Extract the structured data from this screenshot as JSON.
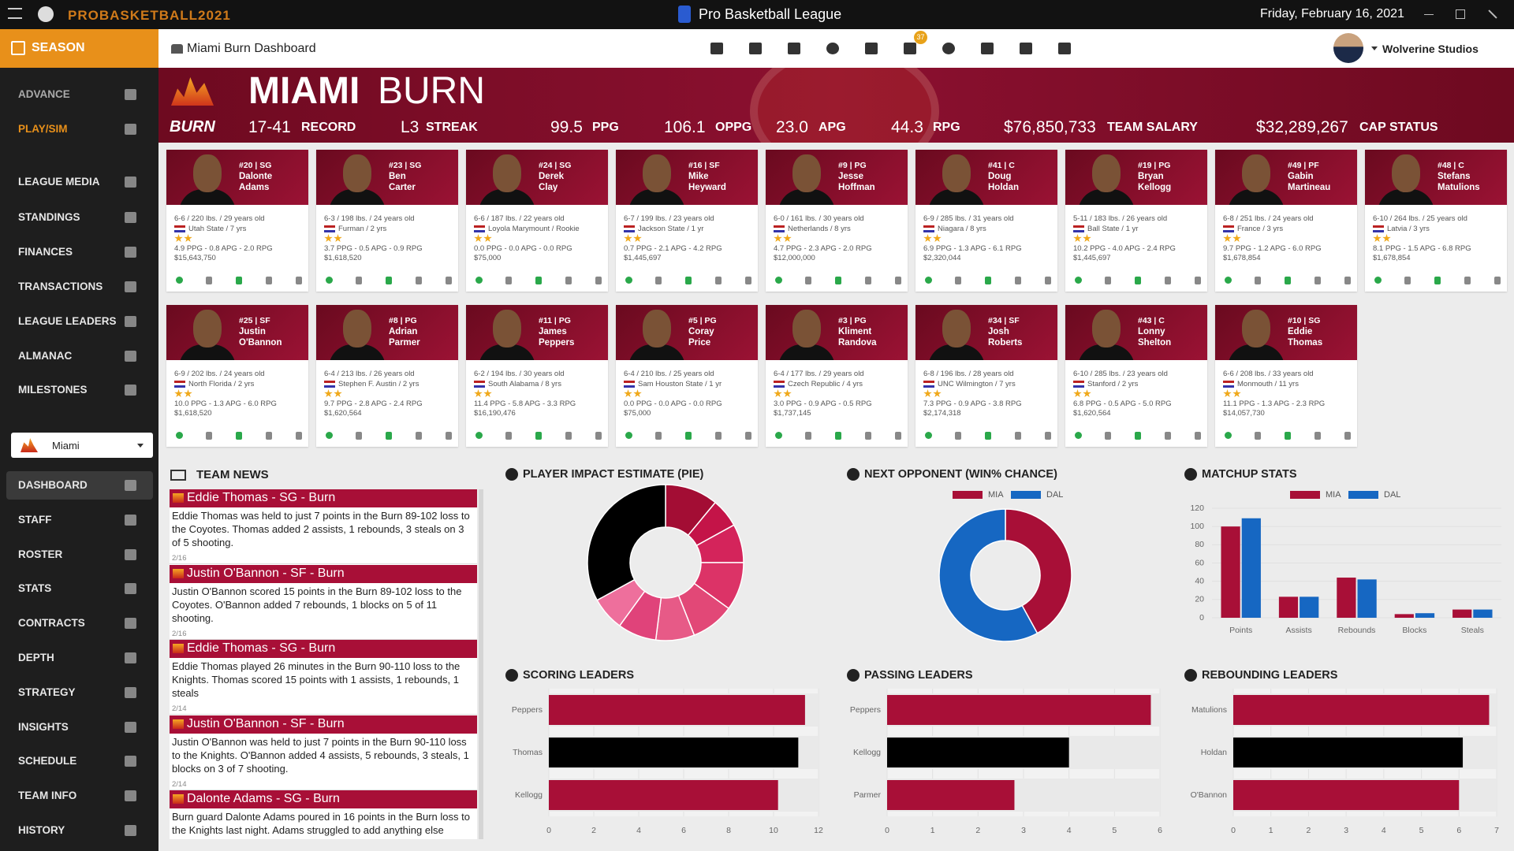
{
  "titlebar": {
    "logo": "PROBASKETBALL2021",
    "title": "Pro Basketball League",
    "date": "Friday, February 16, 2021"
  },
  "sidebar": {
    "season": "SEASON",
    "primary": [
      "ADVANCE",
      "PLAY/SIM",
      "LEAGUE MEDIA",
      "STANDINGS",
      "FINANCES",
      "TRANSACTIONS",
      "LEAGUE LEADERS",
      "ALMANAC",
      "MILESTONES"
    ],
    "team_select": "Miami",
    "secondary": [
      "DASHBOARD",
      "STAFF",
      "ROSTER",
      "STATS",
      "CONTRACTS",
      "DEPTH",
      "STRATEGY",
      "INSIGHTS",
      "SCHEDULE",
      "TEAM INFO",
      "HISTORY"
    ],
    "active_index": 0
  },
  "toolbar": {
    "breadcrumb": "Miami Burn Dashboard",
    "mail_badge": "37",
    "user": "Wolverine Studios"
  },
  "team": {
    "logo_text": "BURN",
    "city": "MIAMI",
    "name": "BURN",
    "stats": [
      {
        "value": "17-41",
        "label": "RECORD"
      },
      {
        "value": "L3",
        "label": "STREAK"
      },
      {
        "value": "99.5",
        "label": "PPG"
      },
      {
        "value": "106.1",
        "label": "OPPG"
      },
      {
        "value": "23.0",
        "label": "APG"
      },
      {
        "value": "44.3",
        "label": "RPG"
      },
      {
        "value": "$76,850,733",
        "label": "TEAM SALARY"
      },
      {
        "value": "$32,289,267",
        "label": "CAP STATUS"
      }
    ]
  },
  "players": [
    {
      "number_pos": "#20 | SG",
      "first": "Dalonte",
      "last": "Adams",
      "bio": "6-6 / 220 lbs. / 29 years old",
      "origin": "Utah State / 7 yrs",
      "stats": "4.9 PPG - 0.8 APG - 2.0 RPG",
      "salary": "$15,643,750"
    },
    {
      "number_pos": "#23 | SG",
      "first": "Ben",
      "last": "Carter",
      "bio": "6-3 / 198 lbs. / 24 years old",
      "origin": "Furman / 2 yrs",
      "stats": "3.7 PPG - 0.5 APG - 0.9 RPG",
      "salary": "$1,618,520"
    },
    {
      "number_pos": "#24 | SG",
      "first": "Derek",
      "last": "Clay",
      "bio": "6-6 / 187 lbs. / 22 years old",
      "origin": "Loyola Marymount / Rookie",
      "stats": "0.0 PPG - 0.0 APG - 0.0 RPG",
      "salary": "$75,000"
    },
    {
      "number_pos": "#16 | SF",
      "first": "Mike",
      "last": "Heyward",
      "bio": "6-7 / 199 lbs. / 23 years old",
      "origin": "Jackson State / 1 yr",
      "stats": "0.7 PPG - 2.1 APG - 4.2 RPG",
      "salary": "$1,445,697"
    },
    {
      "number_pos": "#9 | PG",
      "first": "Jesse",
      "last": "Hoffman",
      "bio": "6-0 / 161 lbs. / 30 years old",
      "origin": "Netherlands / 8 yrs",
      "stats": "4.7 PPG - 2.3 APG - 2.0 RPG",
      "salary": "$12,000,000"
    },
    {
      "number_pos": "#41 | C",
      "first": "Doug",
      "last": "Holdan",
      "bio": "6-9 / 285 lbs. / 31 years old",
      "origin": "Niagara / 8 yrs",
      "stats": "6.9 PPG - 1.3 APG - 6.1 RPG",
      "salary": "$2,320,044"
    },
    {
      "number_pos": "#19 | PG",
      "first": "Bryan",
      "last": "Kellogg",
      "bio": "5-11 / 183 lbs. / 26 years old",
      "origin": "Ball State / 1 yr",
      "stats": "10.2 PPG - 4.0 APG - 2.4 RPG",
      "salary": "$1,445,697"
    },
    {
      "number_pos": "#49 | PF",
      "first": "Gabin",
      "last": "Martineau",
      "bio": "6-8 / 251 lbs. / 24 years old",
      "origin": "France / 3 yrs",
      "stats": "9.7 PPG - 1.2 APG - 6.0 RPG",
      "salary": "$1,678,854"
    },
    {
      "number_pos": "#48 | C",
      "first": "Stefans",
      "last": "Matulions",
      "bio": "6-10 / 264 lbs. / 25 years old",
      "origin": "Latvia / 3 yrs",
      "stats": "8.1 PPG - 1.5 APG - 6.8 RPG",
      "salary": "$1,678,854"
    },
    {
      "number_pos": "#25 | SF",
      "first": "Justin",
      "last": "O'Bannon",
      "bio": "6-9 / 202 lbs. / 24 years old",
      "origin": "North Florida / 2 yrs",
      "stats": "10.0 PPG - 1.3 APG - 6.0 RPG",
      "salary": "$1,618,520"
    },
    {
      "number_pos": "#8 | PG",
      "first": "Adrian",
      "last": "Parmer",
      "bio": "6-4 / 213 lbs. / 26 years old",
      "origin": "Stephen F. Austin / 2 yrs",
      "stats": "9.7 PPG - 2.8 APG - 2.4 RPG",
      "salary": "$1,620,564"
    },
    {
      "number_pos": "#11 | PG",
      "first": "James",
      "last": "Peppers",
      "bio": "6-2 / 194 lbs. / 30 years old",
      "origin": "South Alabama / 8 yrs",
      "stats": "11.4 PPG - 5.8 APG - 3.3 RPG",
      "salary": "$16,190,476"
    },
    {
      "number_pos": "#5 | PG",
      "first": "Coray",
      "last": "Price",
      "bio": "6-4 / 210 lbs. / 25 years old",
      "origin": "Sam Houston State / 1 yr",
      "stats": "0.0 PPG - 0.0 APG - 0.0 RPG",
      "salary": "$75,000"
    },
    {
      "number_pos": "#3 | PG",
      "first": "Kliment",
      "last": "Randova",
      "bio": "6-4 / 177 lbs. / 29 years old",
      "origin": "Czech Republic / 4 yrs",
      "stats": "3.0 PPG - 0.9 APG - 0.5 RPG",
      "salary": "$1,737,145"
    },
    {
      "number_pos": "#34 | SF",
      "first": "Josh",
      "last": "Roberts",
      "bio": "6-8 / 196 lbs. / 28 years old",
      "origin": "UNC Wilmington / 7 yrs",
      "stats": "7.3 PPG - 0.9 APG - 3.8 RPG",
      "salary": "$2,174,318"
    },
    {
      "number_pos": "#43 | C",
      "first": "Lonny",
      "last": "Shelton",
      "bio": "6-10 / 285 lbs. / 23 years old",
      "origin": "Stanford / 2 yrs",
      "stats": "6.8 PPG - 0.5 APG - 5.0 RPG",
      "salary": "$1,620,564"
    },
    {
      "number_pos": "#10 | SG",
      "first": "Eddie",
      "last": "Thomas",
      "bio": "6-6 / 208 lbs. / 33 years old",
      "origin": "Monmouth / 11 yrs",
      "stats": "11.1 PPG - 1.3 APG - 2.3 RPG",
      "salary": "$14,057,730"
    }
  ],
  "news": {
    "title": "TEAM NEWS",
    "items": [
      {
        "headline": "Eddie Thomas - SG - Burn",
        "body": "Eddie Thomas was held to just 7 points in the Burn 89-102 loss to the Coyotes. Thomas added 2 assists, 1 rebounds, 3 steals on 3 of 5 shooting.",
        "date": "2/16"
      },
      {
        "headline": "Justin O'Bannon - SF - Burn",
        "body": "Justin O'Bannon scored 15 points in the Burn 89-102 loss to the Coyotes. O'Bannon added 7 rebounds, 1 blocks on 5 of 11 shooting.",
        "date": "2/16"
      },
      {
        "headline": "Eddie Thomas - SG - Burn",
        "body": "Eddie Thomas played 26 minutes in the Burn 90-110 loss to the Knights. Thomas scored 15 points with 1 assists, 1 rebounds, 1 steals",
        "date": "2/14"
      },
      {
        "headline": "Justin O'Bannon - SF - Burn",
        "body": "Justin O'Bannon was held to just 7 points in the Burn 90-110 loss to the Knights. O'Bannon added 4 assists, 5 rebounds, 3 steals, 1 blocks on 3 of 7 shooting.",
        "date": "2/14"
      },
      {
        "headline": "Dalonte Adams - SG - Burn",
        "body": "Burn guard Dalonte Adams poured in 16 points in the Burn loss to the Knights last night. Adams struggled to add anything else",
        "date": null
      }
    ]
  },
  "chart_data": [
    {
      "type": "pie",
      "title": "PLAYER IMPACT ESTIMATE (PIE)",
      "values": [
        11,
        6,
        8,
        10,
        9,
        8,
        8,
        7,
        33
      ],
      "colors": [
        "#a30d34",
        "#c41448",
        "#d4245b",
        "#dc3367",
        "#e24877",
        "#e75a87",
        "#e0437a",
        "#ee6f9c",
        "#000000"
      ]
    },
    {
      "type": "pie",
      "title": "NEXT OPPONENT (WIN% CHANCE)",
      "categories": [
        "MIA",
        "DAL"
      ],
      "values": [
        42,
        58
      ],
      "colors": [
        "#a80f37",
        "#1667c2"
      ],
      "legend": "top"
    },
    {
      "type": "bar",
      "title": "MATCHUP STATS",
      "categories": [
        "Points",
        "Assists",
        "Rebounds",
        "Blocks",
        "Steals"
      ],
      "series": [
        {
          "name": "MIA",
          "color": "#a80f37",
          "values": [
            100,
            23,
            44,
            4,
            9
          ]
        },
        {
          "name": "DAL",
          "color": "#1667c2",
          "values": [
            109,
            23,
            42,
            5,
            9
          ]
        }
      ],
      "ylim": [
        0,
        120
      ],
      "yticks": [
        0,
        20,
        40,
        60,
        80,
        100,
        120
      ],
      "grid": true,
      "legend": "top"
    },
    {
      "type": "barh",
      "title": "SCORING LEADERS",
      "categories": [
        "Peppers",
        "Thomas",
        "Kellogg"
      ],
      "values": [
        11.4,
        11.1,
        10.2
      ],
      "colors": [
        "#a80f37",
        "#000000",
        "#a80f37"
      ],
      "xlim": [
        0,
        12
      ],
      "xticks": [
        0,
        2,
        4,
        6,
        8,
        10,
        12
      ]
    },
    {
      "type": "barh",
      "title": "PASSING LEADERS",
      "categories": [
        "Peppers",
        "Kellogg",
        "Parmer"
      ],
      "values": [
        5.8,
        4.0,
        2.8
      ],
      "colors": [
        "#a80f37",
        "#000000",
        "#a80f37"
      ],
      "xlim": [
        0,
        6
      ],
      "xticks": [
        0,
        1,
        2,
        3,
        4,
        5,
        6
      ]
    },
    {
      "type": "barh",
      "title": "REBOUNDING LEADERS",
      "categories": [
        "Matulions",
        "Holdan",
        "O'Bannon"
      ],
      "values": [
        6.8,
        6.1,
        6.0
      ],
      "colors": [
        "#a80f37",
        "#000000",
        "#a80f37"
      ],
      "xlim": [
        0,
        7
      ],
      "xticks": [
        0,
        1,
        2,
        3,
        4,
        5,
        6,
        7
      ]
    }
  ]
}
